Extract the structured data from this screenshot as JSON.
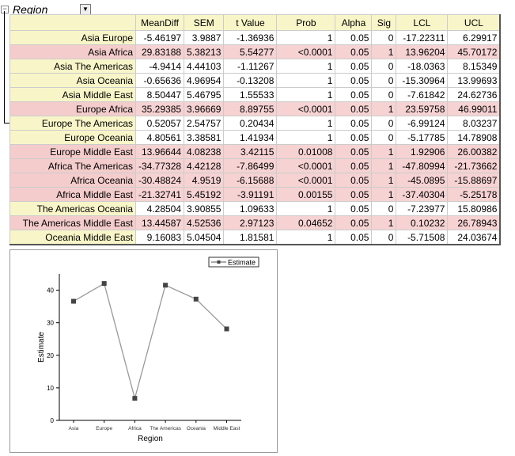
{
  "header": {
    "title": "Region",
    "collapse": "−",
    "dropdown": "▼"
  },
  "table": {
    "columns": [
      "",
      "MeanDiff",
      "SEM",
      "t Value",
      "Prob",
      "Alpha",
      "Sig",
      "LCL",
      "UCL"
    ],
    "rows": [
      [
        "Asia Europe",
        "-5.46197",
        "3.9887",
        "-1.36936",
        "1",
        "0.05",
        "0",
        "-17.22311",
        "6.29917"
      ],
      [
        "Asia Africa",
        "29.83188",
        "5.38213",
        "5.54277",
        "<0.0001",
        "0.05",
        "1",
        "13.96204",
        "45.70172"
      ],
      [
        "Asia The Americas",
        "-4.9414",
        "4.44103",
        "-1.11267",
        "1",
        "0.05",
        "0",
        "-18.0363",
        "8.15349"
      ],
      [
        "Asia Oceania",
        "-0.65636",
        "4.96954",
        "-0.13208",
        "1",
        "0.05",
        "0",
        "-15.30964",
        "13.99693"
      ],
      [
        "Asia Middle East",
        "8.50447",
        "5.46795",
        "1.55533",
        "1",
        "0.05",
        "0",
        "-7.61842",
        "24.62736"
      ],
      [
        "Europe Africa",
        "35.29385",
        "3.96669",
        "8.89755",
        "<0.0001",
        "0.05",
        "1",
        "23.59758",
        "46.99011"
      ],
      [
        "Europe The Americas",
        "0.52057",
        "2.54757",
        "0.20434",
        "1",
        "0.05",
        "0",
        "-6.99124",
        "8.03237"
      ],
      [
        "Europe Oceania",
        "4.80561",
        "3.38581",
        "1.41934",
        "1",
        "0.05",
        "0",
        "-5.17785",
        "14.78908"
      ],
      [
        "Europe Middle East",
        "13.96644",
        "4.08238",
        "3.42115",
        "0.01008",
        "0.05",
        "1",
        "1.92906",
        "26.00382"
      ],
      [
        "Africa The Americas",
        "-34.77328",
        "4.42128",
        "-7.86499",
        "<0.0001",
        "0.05",
        "1",
        "-47.80994",
        "-21.73662"
      ],
      [
        "Africa Oceania",
        "-30.48824",
        "4.9519",
        "-6.15688",
        "<0.0001",
        "0.05",
        "1",
        "-45.0895",
        "-15.88697"
      ],
      [
        "Africa Middle East",
        "-21.32741",
        "5.45192",
        "-3.91191",
        "0.00155",
        "0.05",
        "1",
        "-37.40304",
        "-5.25178"
      ],
      [
        "The Americas Oceania",
        "4.28504",
        "3.90855",
        "1.09633",
        "1",
        "0.05",
        "0",
        "-7.23977",
        "15.80986"
      ],
      [
        "The Americas Middle East",
        "13.44587",
        "4.52536",
        "2.97123",
        "0.04652",
        "0.05",
        "1",
        "0.10232",
        "26.78943"
      ],
      [
        "Oceania Middle East",
        "9.16083",
        "5.04504",
        "1.81581",
        "1",
        "0.05",
        "0",
        "-5.71508",
        "24.03674"
      ]
    ]
  },
  "colors": {
    "significant": "#f6d2d2",
    "label_bg": "#f8f6c8",
    "line": "#999999",
    "marker": "#444444"
  },
  "chart_data": {
    "type": "line",
    "categories": [
      "Asia",
      "Europe",
      "Africa",
      "The Americas",
      "Oceania",
      "Middle East"
    ],
    "series": [
      {
        "name": "Estimate",
        "values": [
          36.6,
          42.06,
          6.77,
          41.54,
          37.26,
          28.1
        ]
      }
    ],
    "xlabel": "Region",
    "ylabel": "Estimate",
    "ylim": [
      0,
      45
    ],
    "yticks": [
      0,
      10,
      20,
      30,
      40
    ],
    "legend": "top-right",
    "grid": false
  }
}
